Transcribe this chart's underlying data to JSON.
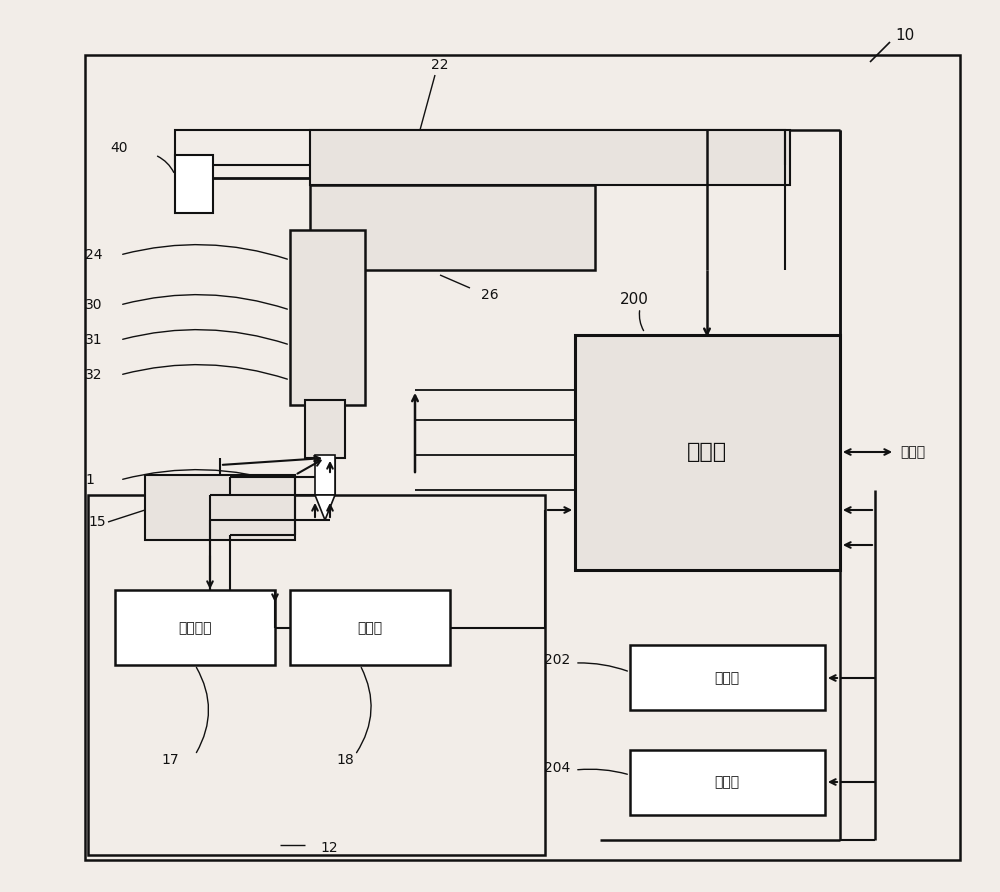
{
  "bg": "#f2ede8",
  "lc": "#111111",
  "white": "#ffffff",
  "gray_light": "#e8e3de",
  "gray_med": "#c8c3be",
  "labels": {
    "control": "控制部",
    "motor": "旋转马达",
    "encoder": "编码器",
    "storage": "储存部",
    "input": "输入部",
    "server": "服务器"
  },
  "nums": [
    "10",
    "12",
    "15",
    "17",
    "18",
    "22",
    "24",
    "26",
    "30",
    "31",
    "32",
    "40",
    "1",
    "200",
    "202",
    "204"
  ]
}
